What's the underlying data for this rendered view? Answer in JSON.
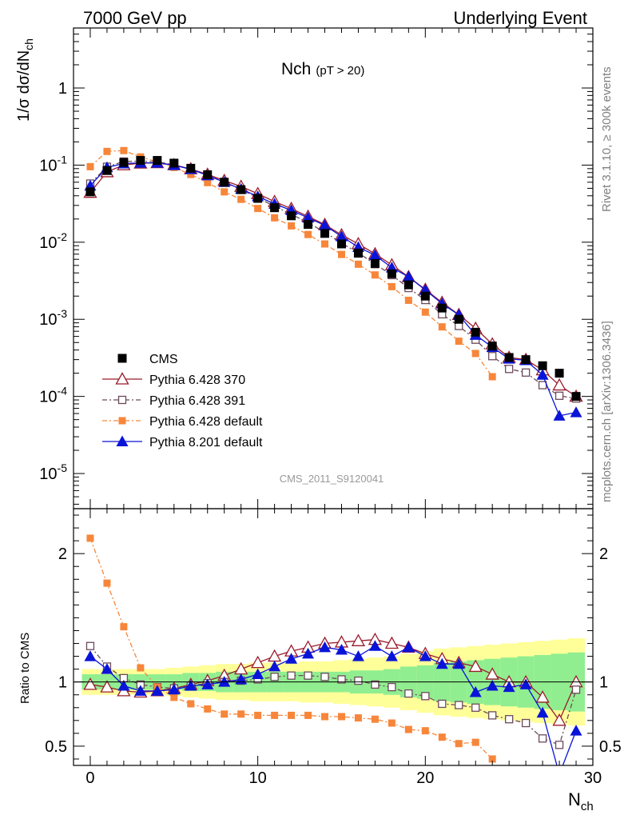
{
  "header": {
    "left": "7000 GeV pp",
    "right": "Underlying Event"
  },
  "side": {
    "rivet": "Rivet 3.1.10, ≥ 300k events",
    "mcplots": "mcplots.cern.ch [arXiv:1306.3436]"
  },
  "plot": {
    "title_main": "Nch",
    "title_sub": "(pT > 20)",
    "ylabel_main": "1/σ dσ/dN",
    "ylabel_sub": "ch",
    "xlabel_main": "N",
    "xlabel_sub": "ch",
    "ratio_ylabel": "Ratio to CMS",
    "watermark": "CMS_2011_S9120041"
  },
  "chart_data": {
    "type": "scatter",
    "x_range": [
      -1,
      30
    ],
    "main_yscale": "log",
    "main_yrange": [
      3.5e-06,
      6
    ],
    "ratio_yrange": [
      0.35,
      2.35
    ],
    "x_ticks": [
      0,
      10,
      20,
      30
    ],
    "main_y_ticks": [
      "1",
      "10^-1",
      "10^-2",
      "10^-3",
      "10^-4",
      "10^-5"
    ],
    "ratio_y_ticks": [
      "0.5",
      "1",
      "2"
    ],
    "legend": {
      "position": "bottom-left"
    },
    "legend_labels": [
      "CMS",
      "Pythia 6.428 370",
      "Pythia 6.428 391",
      "Pythia 6.428 default",
      "Pythia 8.201 default"
    ],
    "colors": {
      "cms": "#000000",
      "p370": "#9a1b2b",
      "p391": "#6b4a5a",
      "pdef": "#f7863a",
      "p8": "#0a14d8",
      "band_inner": "#90ee90",
      "band_outer": "#ffff99"
    },
    "x": [
      0,
      1,
      2,
      3,
      4,
      5,
      6,
      7,
      8,
      9,
      10,
      11,
      12,
      13,
      14,
      15,
      16,
      17,
      18,
      19,
      20,
      21,
      22,
      23,
      24,
      25,
      26,
      27,
      28,
      29
    ],
    "cms": [
      0.045,
      0.085,
      0.108,
      0.115,
      0.115,
      0.106,
      0.091,
      0.075,
      0.06,
      0.048,
      0.037,
      0.028,
      0.022,
      0.017,
      0.013,
      0.0095,
      0.0072,
      0.0053,
      0.0039,
      0.0028,
      0.002,
      0.0014,
      0.001,
      0.00068,
      0.00045,
      0.00032,
      0.0003,
      0.00025,
      0.0002,
      0.0001
    ],
    "series": [
      {
        "name": "Pythia 6.428 370",
        "key": "p370",
        "marker": "tri-open",
        "ratio": [
          0.98,
          0.96,
          0.93,
          0.92,
          0.93,
          0.95,
          0.98,
          1.01,
          1.05,
          1.1,
          1.15,
          1.2,
          1.24,
          1.27,
          1.3,
          1.31,
          1.32,
          1.33,
          1.3,
          1.27,
          1.22,
          1.18,
          1.15,
          1.12,
          1.06,
          1.0,
          1.0,
          0.88,
          0.7,
          1.0
        ]
      },
      {
        "name": "Pythia 6.428 391",
        "key": "p391",
        "marker": "sq-open",
        "ratio": [
          1.28,
          1.12,
          1.03,
          0.98,
          0.96,
          0.95,
          0.97,
          0.99,
          1.0,
          1.01,
          1.02,
          1.04,
          1.05,
          1.05,
          1.04,
          1.02,
          1.01,
          0.98,
          0.96,
          0.91,
          0.89,
          0.83,
          0.82,
          0.8,
          0.74,
          0.71,
          0.68,
          0.56,
          0.51,
          0.94
        ]
      },
      {
        "name": "Pythia 6.428 default",
        "key": "pdef",
        "marker": "sq-filled",
        "ratio": [
          2.12,
          1.77,
          1.43,
          1.11,
          0.96,
          0.88,
          0.83,
          0.79,
          0.75,
          0.75,
          0.74,
          0.74,
          0.74,
          0.74,
          0.73,
          0.73,
          0.72,
          0.71,
          0.68,
          0.63,
          0.62,
          0.57,
          0.52,
          0.53,
          0.4,
          null,
          null,
          null,
          null,
          null
        ]
      },
      {
        "name": "Pythia 8.201 default",
        "key": "p8",
        "marker": "tri-filled",
        "ratio": [
          1.2,
          1.1,
          0.97,
          0.93,
          0.93,
          0.94,
          0.97,
          0.98,
          1.0,
          1.02,
          1.06,
          1.12,
          1.18,
          1.22,
          1.27,
          1.25,
          1.2,
          1.28,
          1.2,
          1.27,
          1.2,
          1.14,
          1.14,
          0.92,
          0.97,
          0.96,
          0.98,
          0.76,
          0.28,
          0.62
        ]
      }
    ],
    "band_inner": [
      0.06,
      0.06,
      0.06,
      0.06,
      0.06,
      0.06,
      0.07,
      0.07,
      0.08,
      0.08,
      0.08,
      0.08,
      0.08,
      0.08,
      0.08,
      0.08,
      0.09,
      0.09,
      0.1,
      0.12,
      0.13,
      0.15,
      0.16,
      0.17,
      0.18,
      0.19,
      0.2,
      0.21,
      0.22,
      0.23
    ],
    "band_outer": [
      0.1,
      0.1,
      0.1,
      0.1,
      0.1,
      0.11,
      0.12,
      0.13,
      0.14,
      0.14,
      0.15,
      0.15,
      0.15,
      0.16,
      0.16,
      0.17,
      0.18,
      0.19,
      0.2,
      0.22,
      0.24,
      0.26,
      0.27,
      0.28,
      0.29,
      0.3,
      0.31,
      0.32,
      0.33,
      0.34
    ]
  }
}
